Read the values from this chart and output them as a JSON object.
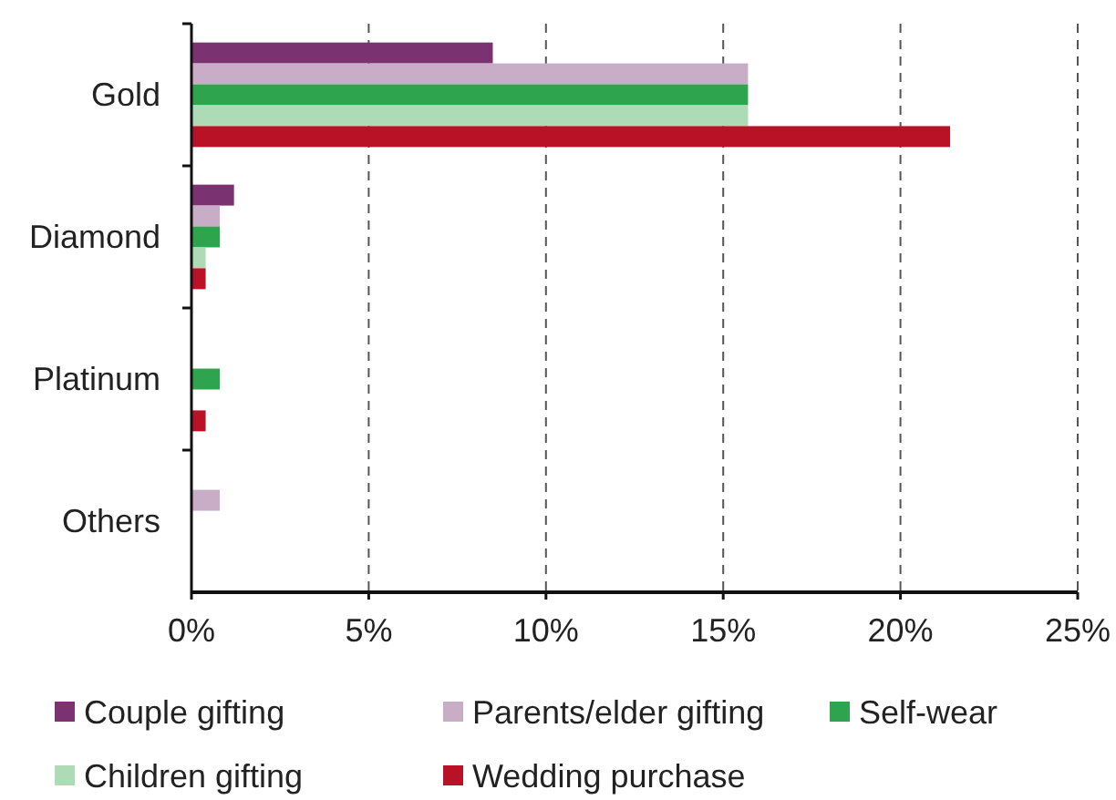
{
  "chart_data": {
    "type": "bar",
    "orientation": "horizontal",
    "categories": [
      "Gold",
      "Diamond",
      "Platinum",
      "Others"
    ],
    "series": [
      {
        "name": "Couple gifting",
        "color": "#7b3270",
        "values": [
          8.5,
          1.2,
          0,
          0
        ]
      },
      {
        "name": "Parents/elder gifting",
        "color": "#c9adc7",
        "values": [
          15.7,
          0.8,
          0,
          0.8
        ]
      },
      {
        "name": "Self-wear",
        "color": "#2ea44f",
        "values": [
          15.7,
          0.8,
          0.8,
          0
        ]
      },
      {
        "name": "Children gifting",
        "color": "#acdbb5",
        "values": [
          15.7,
          0.4,
          0,
          0
        ]
      },
      {
        "name": "Wedding purchase",
        "color": "#b91226",
        "values": [
          21.4,
          0.4,
          0.4,
          0
        ]
      }
    ],
    "xlim": [
      0,
      25
    ],
    "xticks": [
      {
        "value": 0,
        "label": "0%"
      },
      {
        "value": 5,
        "label": "5%"
      },
      {
        "value": 10,
        "label": "10%"
      },
      {
        "value": 15,
        "label": "15%"
      },
      {
        "value": 20,
        "label": "20%"
      },
      {
        "value": 25,
        "label": "25%"
      }
    ],
    "grid": "x",
    "legend": "bottom"
  }
}
